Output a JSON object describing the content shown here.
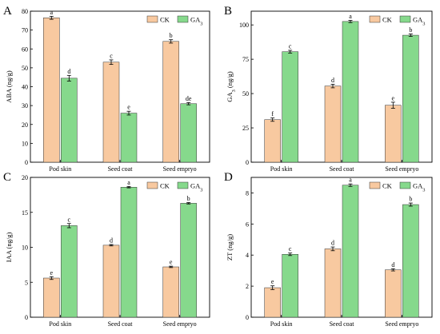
{
  "colors": {
    "ck_fill": "#F8C9A0",
    "ga3_fill": "#86D98C",
    "edge": "#333333",
    "error_bar": "#000000"
  },
  "chart_data": [
    {
      "panel": "A",
      "type": "bar",
      "categories": [
        "Pod skin",
        "Seed coat",
        "Seed empryo"
      ],
      "ylabel": "ABA (ng/g)",
      "ylim": [
        0,
        80
      ],
      "yticks": [
        "0",
        "10",
        "20",
        "30",
        "40",
        "50",
        "60",
        "70",
        "80"
      ],
      "legend": "top-right",
      "series": [
        {
          "name": "CK",
          "values": [
            76.5,
            53,
            64
          ],
          "errors": [
            0.8,
            1.2,
            0.9
          ],
          "letters": [
            "a",
            "c",
            "b"
          ]
        },
        {
          "name": "GA₃",
          "values": [
            44.5,
            26,
            31
          ],
          "errors": [
            1.5,
            1.0,
            0.6
          ],
          "letters": [
            "d",
            "e",
            "de"
          ]
        }
      ]
    },
    {
      "panel": "B",
      "type": "bar",
      "categories": [
        "Pod skin",
        "Seed coat",
        "Seed empryo"
      ],
      "ylabel": "GA₃ (ng/g)",
      "ylim": [
        0,
        110
      ],
      "yticks": [
        "0",
        "25",
        "50",
        "75",
        "100"
      ],
      "legend": "top-right",
      "series": [
        {
          "name": "CK",
          "values": [
            31,
            55.5,
            41.5
          ],
          "errors": [
            1.2,
            1.3,
            2.2
          ],
          "letters": [
            "f",
            "d",
            "e"
          ]
        },
        {
          "name": "GA₃",
          "values": [
            80.5,
            102.5,
            92.5
          ],
          "errors": [
            1.0,
            0.8,
            0.9
          ],
          "letters": [
            "c",
            "a",
            "b"
          ]
        }
      ]
    },
    {
      "panel": "C",
      "type": "bar",
      "categories": [
        "Pod skin",
        "Seed coat",
        "Seed empryo"
      ],
      "ylabel": "IAA (ng/g)",
      "ylim": [
        0,
        20
      ],
      "yticks": [
        "0",
        "5",
        "10",
        "15",
        "20"
      ],
      "legend": "top-right",
      "series": [
        {
          "name": "CK",
          "values": [
            5.6,
            10.3,
            7.2
          ],
          "errors": [
            0.2,
            0.1,
            0.1
          ],
          "letters": [
            "e",
            "d",
            "e"
          ]
        },
        {
          "name": "GA₃",
          "values": [
            13.1,
            18.6,
            16.3
          ],
          "errors": [
            0.3,
            0.1,
            0.1
          ],
          "letters": [
            "c",
            "a",
            "b"
          ]
        }
      ]
    },
    {
      "panel": "D",
      "type": "bar",
      "categories": [
        "Pod skin",
        "Seed coat",
        "Seed empryo"
      ],
      "ylabel": "ZT (ng/g)",
      "ylim": [
        0,
        9
      ],
      "yticks": [
        "0",
        "2",
        "4",
        "6",
        "8"
      ],
      "legend": "top-right",
      "series": [
        {
          "name": "CK",
          "values": [
            1.9,
            4.4,
            3.05
          ],
          "errors": [
            0.12,
            0.12,
            0.07
          ],
          "letters": [
            "e",
            "d",
            "d"
          ]
        },
        {
          "name": "GA₃",
          "values": [
            4.05,
            8.5,
            7.25
          ],
          "errors": [
            0.08,
            0.08,
            0.1
          ],
          "letters": [
            "c",
            "a",
            "b"
          ]
        }
      ]
    }
  ]
}
